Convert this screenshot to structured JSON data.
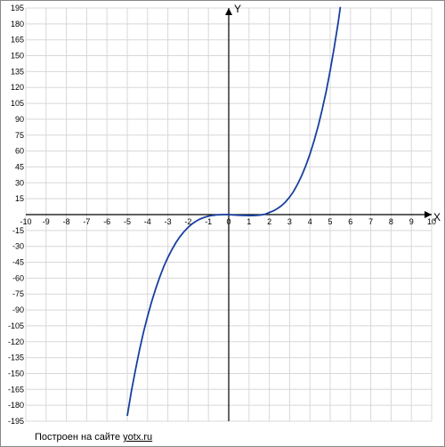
{
  "chart": {
    "type": "line",
    "background_color": "#ffffff",
    "border_color": "#888888",
    "grid_color": "#d8d8d8",
    "axis_color": "#000000",
    "curve_color": "#1840a0",
    "curve_width": 1.8,
    "x_axis": {
      "label": "X",
      "min": -10,
      "max": 10,
      "tick_step": 1,
      "label_fontsize": 12,
      "tick_fontsize": 9
    },
    "y_axis": {
      "label": "Y",
      "min": -195,
      "max": 195,
      "tick_step": 15,
      "label_fontsize": 12,
      "tick_fontsize": 9
    },
    "data_points": [
      [
        -5.0,
        -190
      ],
      [
        -4.8,
        -167
      ],
      [
        -4.6,
        -147
      ],
      [
        -4.4,
        -128
      ],
      [
        -4.2,
        -111
      ],
      [
        -4.0,
        -96
      ],
      [
        -3.8,
        -82.3
      ],
      [
        -3.6,
        -70
      ],
      [
        -3.4,
        -59
      ],
      [
        -3.2,
        -49
      ],
      [
        -3.0,
        -40.5
      ],
      [
        -2.8,
        -33
      ],
      [
        -2.6,
        -26.4
      ],
      [
        -2.4,
        -20.7
      ],
      [
        -2.2,
        -16
      ],
      [
        -2.0,
        -12
      ],
      [
        -1.8,
        -8.7
      ],
      [
        -1.6,
        -6.1
      ],
      [
        -1.4,
        -4.1
      ],
      [
        -1.2,
        -2.6
      ],
      [
        -1.0,
        -1.5
      ],
      [
        -0.8,
        -0.77
      ],
      [
        -0.6,
        -0.32
      ],
      [
        -0.4,
        -0.1
      ],
      [
        -0.2,
        -0.012
      ],
      [
        0.0,
        0
      ],
      [
        0.2,
        -0.3
      ],
      [
        0.4,
        -0.5
      ],
      [
        0.6,
        -0.7
      ],
      [
        0.8,
        -0.8
      ],
      [
        1.0,
        -0.9
      ],
      [
        1.2,
        -0.9
      ],
      [
        1.4,
        -0.7
      ],
      [
        1.6,
        -0.3
      ],
      [
        1.8,
        0.4
      ],
      [
        2.0,
        2
      ],
      [
        2.2,
        3.5
      ],
      [
        2.4,
        5.7
      ],
      [
        2.6,
        8.4
      ],
      [
        2.8,
        12
      ],
      [
        3.0,
        16.5
      ],
      [
        3.2,
        22
      ],
      [
        3.4,
        29
      ],
      [
        3.6,
        37
      ],
      [
        3.8,
        46.3
      ],
      [
        4.0,
        57
      ],
      [
        4.2,
        69.2
      ],
      [
        4.4,
        83
      ],
      [
        4.6,
        98.7
      ],
      [
        4.8,
        116
      ],
      [
        5.0,
        136
      ],
      [
        5.2,
        158
      ],
      [
        5.4,
        182
      ],
      [
        5.5,
        196
      ]
    ]
  },
  "credit": {
    "text": "Построен на сайте ",
    "link_text": "yotx.ru",
    "link_url": "#"
  }
}
